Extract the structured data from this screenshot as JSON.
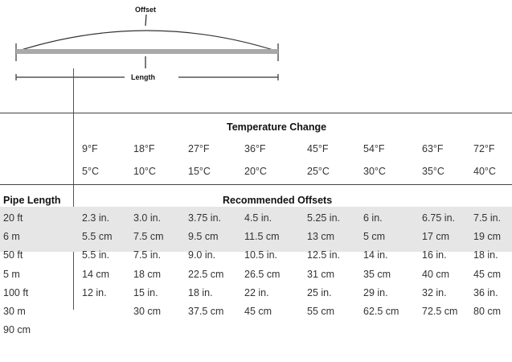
{
  "diagram": {
    "offset_label": "Offset",
    "length_label": "Length"
  },
  "table": {
    "temperature_header": "Temperature Change",
    "fahrenheit": [
      "9°F",
      "18°F",
      "27°F",
      "36°F",
      "45°F",
      "54°F",
      "63°F",
      "72°F"
    ],
    "celsius": [
      "5°C",
      "10°C",
      "15°C",
      "20°C",
      "25°C",
      "30°C",
      "35°C",
      "40°C"
    ],
    "pipe_length_header": "Pipe Length",
    "offsets_header": "Recommended Offsets",
    "rows": [
      {
        "label": "20 ft",
        "values": [
          "2.3 in.",
          "3.0 in.",
          "3.75 in.",
          "4.5 in.",
          "5.25 in.",
          "6 in.",
          "6.75 in.",
          "7.5 in."
        ]
      },
      {
        "label": "6 m",
        "values": [
          "5.5 cm",
          "7.5 cm",
          "9.5 cm",
          "11.5 cm",
          "13 cm",
          "5 cm",
          "17 cm",
          "19 cm"
        ]
      },
      {
        "label": "50 ft",
        "values": [
          "5.5 in.",
          "7.5 in.",
          "9.0 in.",
          "10.5 in.",
          "12.5 in.",
          "14 in.",
          "16 in.",
          "18 in."
        ]
      },
      {
        "label": "5 m",
        "values": [
          "14 cm",
          "18 cm",
          "22.5 cm",
          "26.5 cm",
          "31 cm",
          "35 cm",
          "40 cm",
          "45 cm"
        ]
      },
      {
        "label": "100 ft",
        "values": [
          "12 in.",
          "15 in.",
          "18 in.",
          "22 in.",
          "25 in.",
          "29 in.",
          "32 in.",
          "36 in."
        ]
      },
      {
        "label": "30 m",
        "values": [
          "",
          "30 cm",
          "37.5 cm",
          "45 cm",
          "55 cm",
          "62.5 cm",
          "72.5 cm",
          "80 cm"
        ]
      },
      {
        "label": "90 cm",
        "values": [
          "",
          "",
          "",
          "",
          "",
          "",
          "",
          ""
        ]
      }
    ]
  }
}
